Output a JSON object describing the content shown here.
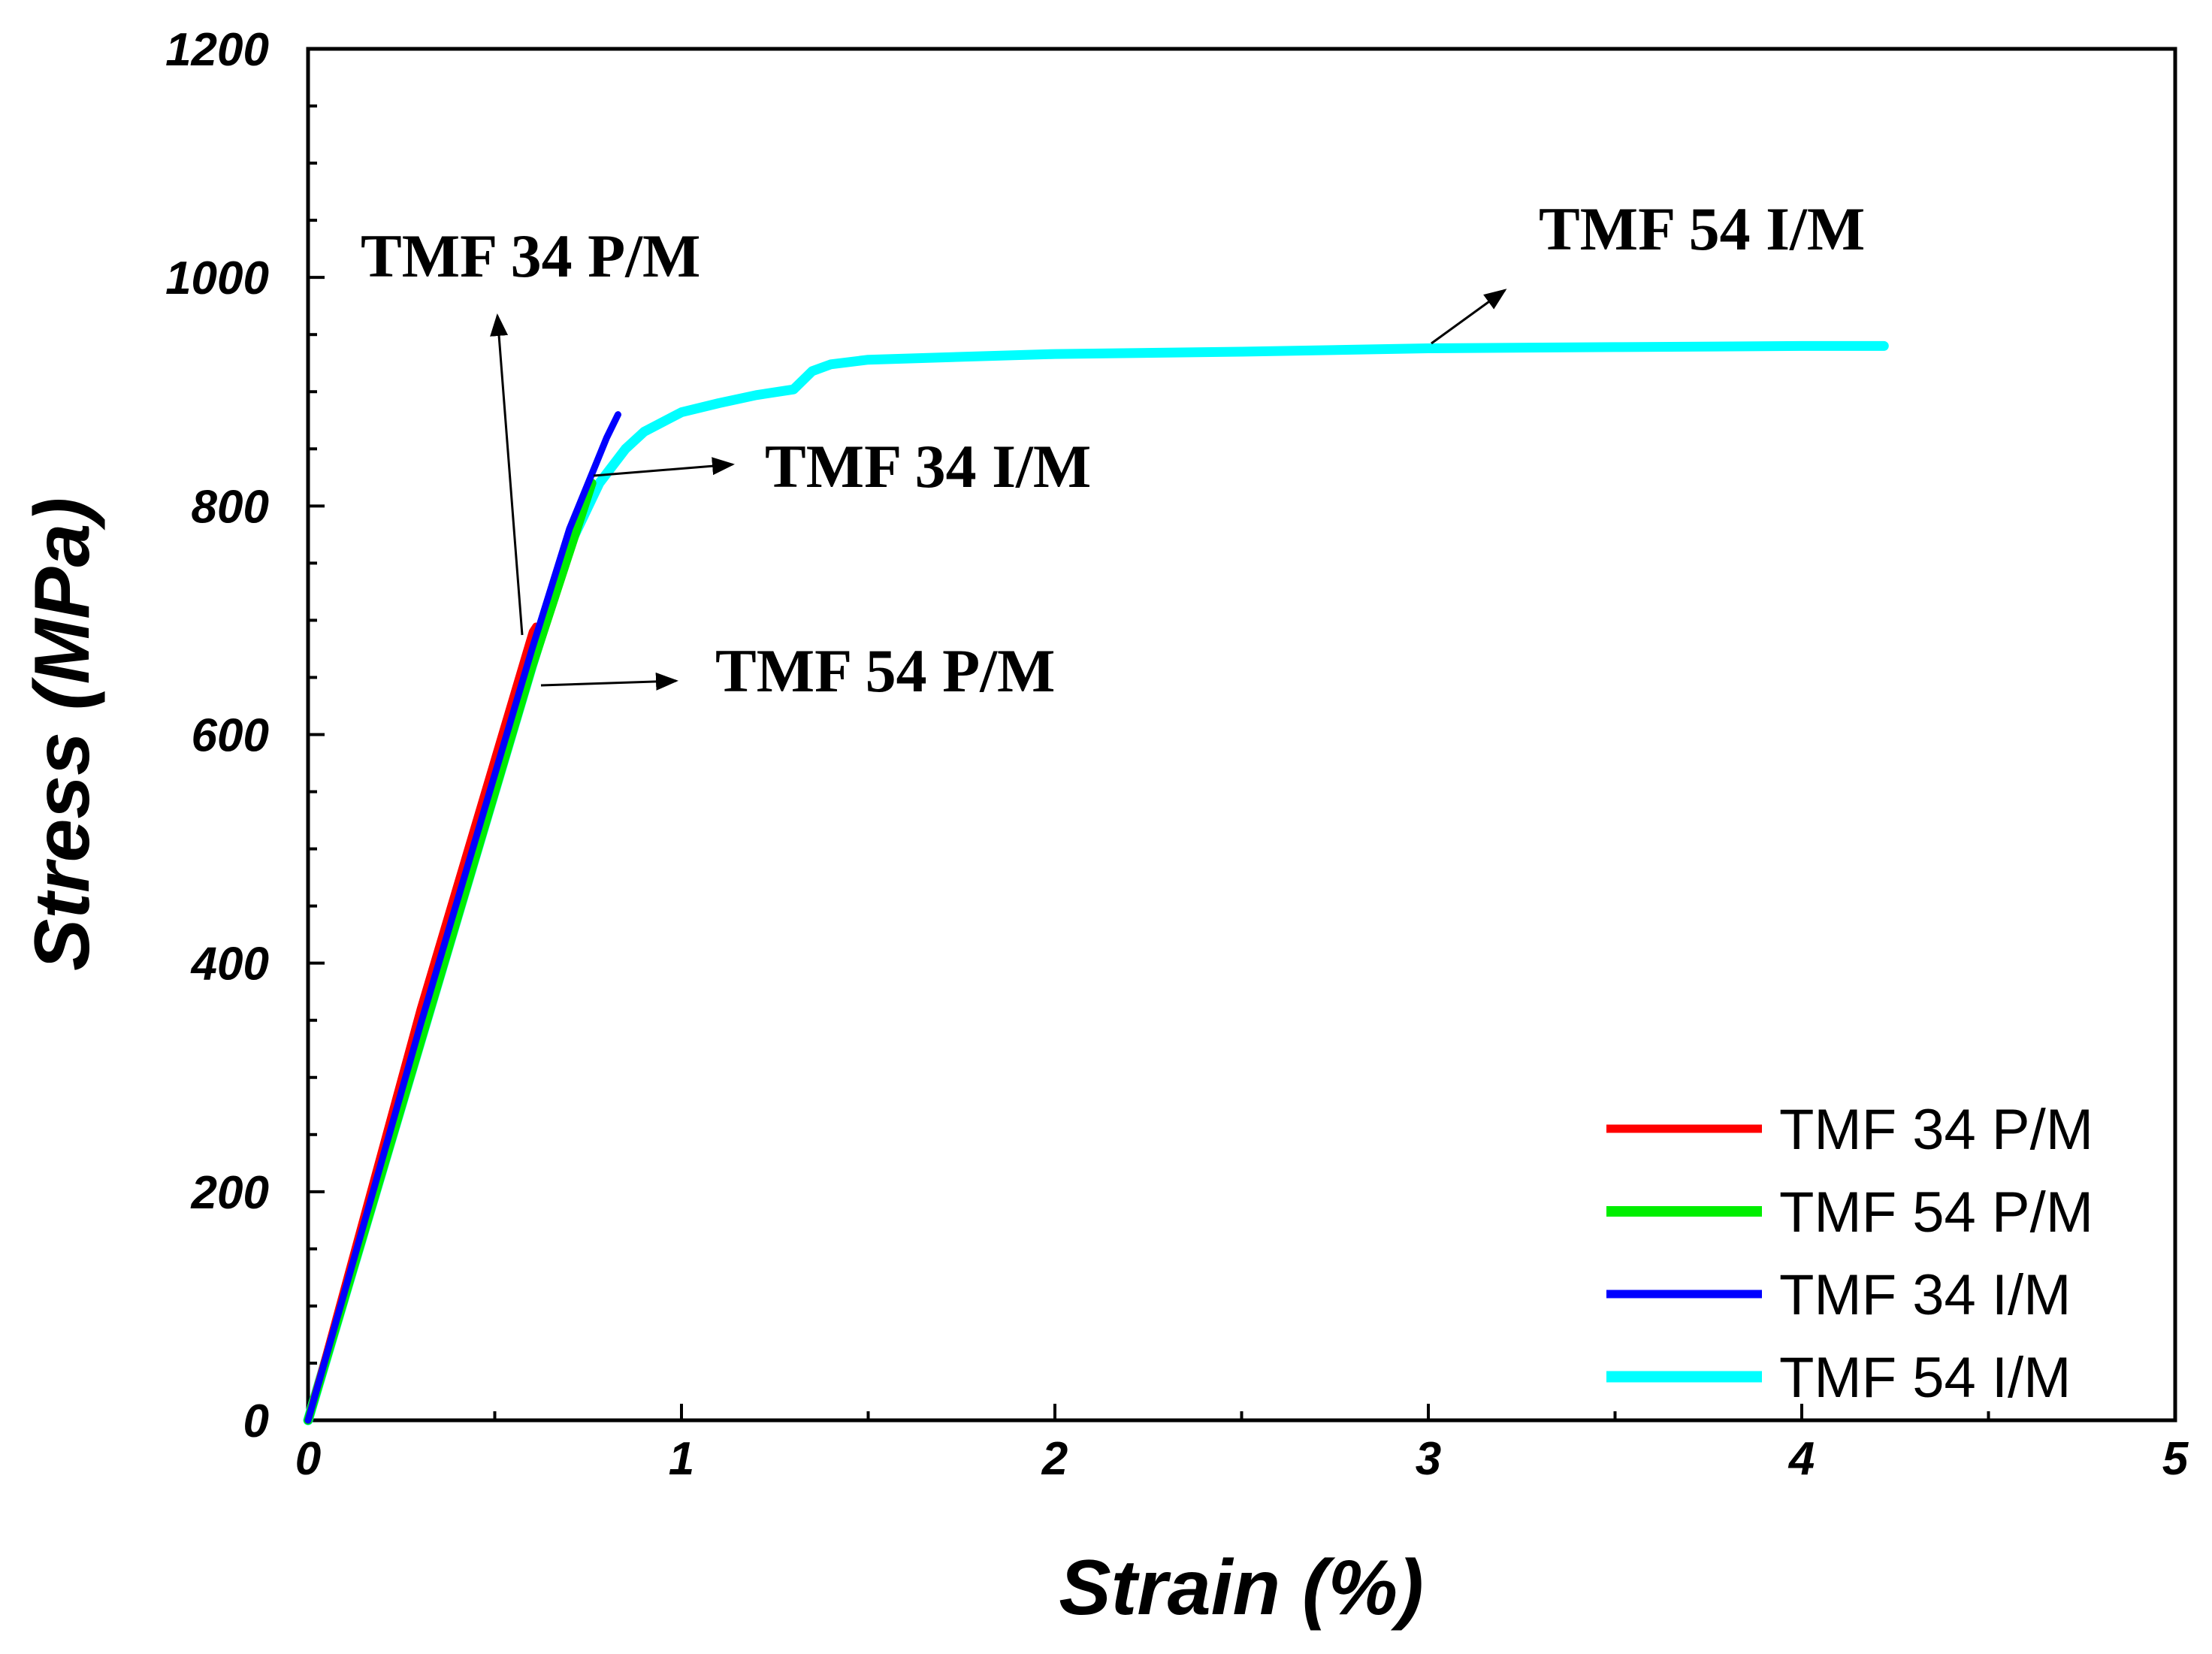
{
  "chart_data": {
    "type": "line",
    "title": "",
    "xlabel": "Strain (%)",
    "ylabel": "Stress (MPa)",
    "xlim": [
      0,
      5
    ],
    "ylim": [
      0,
      1200
    ],
    "xticks": [
      0,
      1,
      2,
      3,
      4,
      5
    ],
    "xtick_labels": [
      "0",
      "1",
      "2",
      "3",
      "4",
      "5"
    ],
    "yticks": [
      0,
      200,
      400,
      600,
      800,
      1000,
      1200
    ],
    "ytick_labels": [
      "0",
      "200",
      "400",
      "600",
      "800",
      "1000",
      "1200"
    ],
    "grid": false,
    "legend_position": "bottom-right",
    "series": [
      {
        "name": "TMF 34 P/M",
        "color": "#ff0000",
        "x": [
          0,
          0.05,
          0.1,
          0.2,
          0.3,
          0.4,
          0.5,
          0.6,
          0.61
        ],
        "y": [
          0,
          60,
          120,
          240,
          360,
          470,
          580,
          690,
          695
        ]
      },
      {
        "name": "TMF 54 P/M",
        "color": "#00ee00",
        "x": [
          0,
          0.1,
          0.2,
          0.3,
          0.4,
          0.5,
          0.6,
          0.7,
          0.76
        ],
        "y": [
          0,
          110,
          220,
          330,
          440,
          550,
          660,
          760,
          820
        ]
      },
      {
        "name": "TMF 34 I/M",
        "color": "#0000ff",
        "x": [
          0,
          0.1,
          0.2,
          0.3,
          0.4,
          0.5,
          0.6,
          0.7,
          0.8,
          0.83
        ],
        "y": [
          0,
          115,
          230,
          345,
          455,
          565,
          675,
          780,
          860,
          880
        ]
      },
      {
        "name": "TMF 54 I/M",
        "color": "#00ffff",
        "x": [
          0,
          0.1,
          0.2,
          0.3,
          0.4,
          0.5,
          0.6,
          0.7,
          0.78,
          0.85,
          0.9,
          1.0,
          1.1,
          1.2,
          1.3,
          1.35,
          1.4,
          1.5,
          1.7,
          2.0,
          2.5,
          3.0,
          3.5,
          4.0,
          4.22
        ],
        "y": [
          0,
          110,
          220,
          330,
          440,
          550,
          660,
          765,
          820,
          850,
          865,
          882,
          890,
          897,
          902,
          918,
          924,
          928,
          930,
          933,
          935,
          938,
          939,
          940,
          940
        ]
      }
    ],
    "annotations": [
      {
        "text": "TMF 34 P/M",
        "target": "TMF 34 P/M"
      },
      {
        "text": "TMF 34 I/M",
        "target": "TMF 34 I/M"
      },
      {
        "text": "TMF 54 P/M",
        "target": "TMF 54 P/M"
      },
      {
        "text": "TMF 54 I/M",
        "target": "TMF 54 I/M"
      }
    ]
  }
}
